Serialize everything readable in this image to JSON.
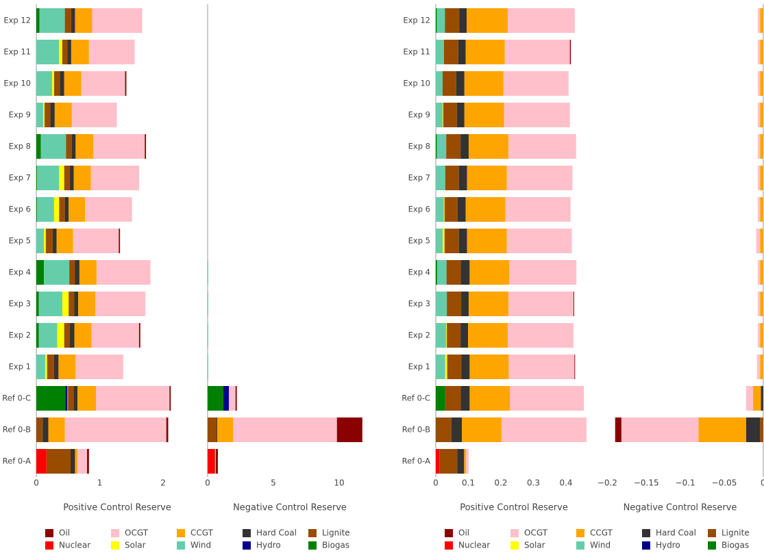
{
  "chart_data": [
    {
      "type": "bar",
      "orientation": "h",
      "categories": [
        "Ref 0-A",
        "Ref 0-B",
        "Ref 0-C",
        "Exp 1",
        "Exp 2",
        "Exp 3",
        "Exp 4",
        "Exp 5",
        "Exp 6",
        "Exp 7",
        "Exp 8",
        "Exp 9",
        "Exp 10",
        "Exp 11",
        "Exp 12"
      ],
      "series": [
        {
          "name": "Oil",
          "color": "#8b0000"
        },
        {
          "name": "OCGT",
          "color": "#ffc0cb"
        },
        {
          "name": "CCGT",
          "color": "#ffa500"
        },
        {
          "name": "Hard Coal",
          "color": "#333333"
        },
        {
          "name": "Lignite",
          "color": "#994c00"
        },
        {
          "name": "Nuclear",
          "color": "#ff0000"
        },
        {
          "name": "Solar",
          "color": "#ffff00"
        },
        {
          "name": "Wind",
          "color": "#66cdaa"
        },
        {
          "name": "Hydro",
          "color": "#00008b"
        },
        {
          "name": "Biogas",
          "color": "#008000"
        }
      ],
      "panels": [
        {
          "xlabel": "Positive Control Reserve",
          "xlim": [
            0,
            2.55
          ],
          "xticks": [
            0,
            1,
            2
          ],
          "values": [
            [
              0.03,
              0.03,
              0.02,
              0,
              0.02,
              0,
              0,
              0.02,
              0,
              0,
              0.02,
              0,
              0.02,
              0,
              0
            ],
            [
              0.15,
              1.6,
              1.16,
              0.75,
              0.75,
              0.79,
              0.85,
              0.72,
              0.74,
              0.76,
              0.81,
              0.71,
              0.69,
              0.72,
              0.79
            ],
            [
              0.04,
              0.26,
              0.29,
              0.27,
              0.27,
              0.27,
              0.27,
              0.26,
              0.26,
              0.27,
              0.28,
              0.27,
              0.27,
              0.28,
              0.27
            ],
            [
              0.07,
              0.09,
              0.06,
              0.07,
              0.07,
              0.06,
              0.07,
              0.06,
              0.06,
              0.06,
              0.06,
              0.07,
              0.07,
              0.06,
              0.06
            ],
            [
              0.38,
              0.1,
              0.09,
              0.11,
              0.09,
              0.09,
              0.09,
              0.11,
              0.09,
              0.09,
              0.09,
              0.09,
              0.09,
              0.08,
              0.1
            ],
            [
              0.16,
              0,
              0,
              0,
              0,
              0,
              0,
              0,
              0,
              0,
              0,
              0,
              0,
              0,
              0
            ],
            [
              0,
              0,
              0,
              0.03,
              0.11,
              0.1,
              0,
              0.03,
              0.08,
              0.08,
              0,
              0.02,
              0.03,
              0.05,
              0
            ],
            [
              0,
              0,
              0.01,
              0.14,
              0.29,
              0.37,
              0.4,
              0.12,
              0.27,
              0.35,
              0.4,
              0.11,
              0.25,
              0.36,
              0.4
            ],
            [
              0,
              0,
              0.03,
              0,
              0,
              0,
              0,
              0,
              0,
              0,
              0,
              0,
              0,
              0,
              0
            ],
            [
              0,
              0,
              0.46,
              0,
              0.04,
              0.04,
              0.12,
              0,
              0.01,
              0.01,
              0.07,
              0,
              0,
              0,
              0.05
            ]
          ]
        },
        {
          "xlabel": "Negative Control Reserve",
          "xlim": [
            0,
            12.5
          ],
          "xticks": [
            0,
            5,
            10
          ],
          "values": [
            [
              0.16,
              1.93,
              0.1,
              0,
              0,
              0,
              0,
              0,
              0,
              0,
              0,
              0,
              0,
              0,
              0
            ],
            [
              0.05,
              7.9,
              0.5,
              0,
              0,
              0,
              0,
              0,
              0,
              0,
              0,
              0,
              0,
              0,
              0
            ],
            [
              0,
              1.2,
              0,
              0,
              0,
              0,
              0,
              0,
              0,
              0,
              0,
              0,
              0,
              0,
              0
            ],
            [
              0,
              0.05,
              0,
              0,
              0,
              0,
              0,
              0,
              0,
              0,
              0,
              0,
              0,
              0,
              0
            ],
            [
              0.05,
              0.68,
              0,
              0,
              0,
              0,
              0,
              0,
              0,
              0,
              0,
              0,
              0,
              0,
              0
            ],
            [
              0.52,
              0,
              0,
              0,
              0,
              0,
              0,
              0,
              0,
              0,
              0,
              0,
              0,
              0,
              0
            ],
            [
              0,
              0,
              0,
              0,
              0,
              0,
              0,
              0,
              0,
              0,
              0,
              0,
              0,
              0,
              0
            ],
            [
              0,
              0,
              0,
              0.05,
              0.05,
              0.05,
              0.05,
              0,
              0,
              0,
              0,
              0,
              0,
              0,
              0
            ],
            [
              0,
              0,
              0.42,
              0,
              0,
              0,
              0,
              0,
              0,
              0,
              0,
              0,
              0,
              0,
              0
            ],
            [
              0,
              0,
              1.2,
              0,
              0,
              0,
              0,
              0,
              0,
              0,
              0,
              0,
              0,
              0,
              0
            ]
          ]
        }
      ]
    },
    {
      "type": "bar",
      "orientation": "h",
      "categories": [
        "Ref 0-A",
        "Ref 0-B",
        "Ref 0-C",
        "Exp 1",
        "Exp 2",
        "Exp 3",
        "Exp 4",
        "Exp 5",
        "Exp 6",
        "Exp 7",
        "Exp 8",
        "Exp 9",
        "Exp 10",
        "Exp 11",
        "Exp 12"
      ],
      "series": [
        {
          "name": "Oil",
          "color": "#8b0000"
        },
        {
          "name": "OCGT",
          "color": "#ffc0cb"
        },
        {
          "name": "CCGT",
          "color": "#ffa500"
        },
        {
          "name": "Hard Coal",
          "color": "#333333"
        },
        {
          "name": "Lignite",
          "color": "#994c00"
        },
        {
          "name": "Nuclear",
          "color": "#ff0000"
        },
        {
          "name": "Solar",
          "color": "#ffff00"
        },
        {
          "name": "Wind",
          "color": "#66cdaa"
        },
        {
          "name": "Hydro",
          "color": "#00008b"
        },
        {
          "name": "Biogas",
          "color": "#008000"
        }
      ],
      "panels": [
        {
          "xlabel": "Positive Control Reserve",
          "xlim": [
            0,
            0.48
          ],
          "xticks": [
            0,
            0.1,
            0.2,
            0.3,
            0.4
          ],
          "values": [
            [
              0,
              0,
              0,
              0.002,
              0,
              0.002,
              0,
              0,
              0,
              0,
              0,
              0,
              0,
              0.003,
              0
            ],
            [
              0.008,
              0.261,
              0.227,
              0.202,
              0.202,
              0.2,
              0.206,
              0.2,
              0.2,
              0.202,
              0.208,
              0.202,
              0.2,
              0.2,
              0.206
            ],
            [
              0.006,
              0.122,
              0.124,
              0.12,
              0.122,
              0.122,
              0.122,
              0.122,
              0.122,
              0.122,
              0.122,
              0.122,
              0.12,
              0.12,
              0.126
            ],
            [
              0.021,
              0.032,
              0.027,
              0.025,
              0.023,
              0.023,
              0.027,
              0.025,
              0.025,
              0.025,
              0.025,
              0.023,
              0.025,
              0.023,
              0.023
            ],
            [
              0.055,
              0.048,
              0.048,
              0.044,
              0.042,
              0.044,
              0.044,
              0.044,
              0.04,
              0.042,
              0.044,
              0.042,
              0.042,
              0.044,
              0.044
            ],
            [
              0.011,
              0,
              0,
              0,
              0,
              0,
              0,
              0,
              0,
              0,
              0,
              0,
              0,
              0,
              0
            ],
            [
              0,
              0,
              0,
              0.006,
              0.002,
              0,
              0,
              0.006,
              0.002,
              0,
              0,
              0.002,
              0,
              0,
              0
            ],
            [
              0,
              0,
              0,
              0.029,
              0.032,
              0.034,
              0.029,
              0.021,
              0.025,
              0.029,
              0.029,
              0.021,
              0.021,
              0.025,
              0.025
            ],
            [
              0,
              0,
              0,
              0,
              0,
              0,
              0,
              0,
              0,
              0,
              0,
              0,
              0,
              0,
              0
            ],
            [
              0,
              0,
              0.029,
              0,
              0,
              0,
              0.004,
              0,
              0,
              0,
              0.003,
              0,
              0,
              0,
              0.003
            ]
          ]
        },
        {
          "xlabel": "Negative Control Reserve",
          "xlim": [
            -0.21,
            0.001
          ],
          "xticks": [
            {
              "value": -0.2,
              "label": "−0.2"
            },
            {
              "value": -0.15,
              "label": "−0.15"
            },
            {
              "value": -0.1,
              "label": "−0.1"
            },
            {
              "value": -0.05,
              "label": "−0.05"
            },
            0
          ],
          "values": [
            [
              0,
              -0.008,
              0,
              0,
              0,
              0,
              0,
              0,
              0,
              0,
              0,
              0,
              0,
              0,
              0
            ],
            [
              0,
              -0.099,
              -0.009,
              -0.004,
              -0.003,
              -0.003,
              -0.003,
              -0.005,
              -0.003,
              -0.003,
              -0.003,
              -0.003,
              -0.003,
              -0.003,
              -0.003
            ],
            [
              0,
              -0.061,
              -0.01,
              -0.004,
              -0.004,
              -0.004,
              -0.004,
              -0.004,
              -0.004,
              -0.004,
              -0.004,
              -0.004,
              -0.004,
              -0.004,
              -0.004
            ],
            [
              0,
              -0.018,
              -0.003,
              0,
              0,
              0,
              0,
              0,
              0,
              0,
              0,
              0,
              0,
              0,
              0
            ],
            [
              0,
              -0.004,
              0,
              0,
              0,
              0,
              0,
              0,
              0,
              0,
              0,
              0,
              0,
              0,
              0
            ],
            [
              0,
              0,
              0,
              0,
              0,
              0,
              0,
              0,
              0,
              0,
              0,
              0,
              0,
              0,
              0
            ],
            [
              0,
              0,
              0,
              0,
              0,
              0,
              0,
              0,
              0,
              0,
              0,
              0,
              0,
              0,
              0
            ],
            [
              0,
              0,
              0,
              0,
              0,
              0,
              0,
              0,
              0,
              0,
              0,
              0,
              0,
              0,
              0
            ],
            [
              0,
              0,
              0,
              0,
              0,
              0,
              0,
              0,
              0,
              0,
              0,
              0,
              0,
              0,
              0
            ],
            [
              0,
              0,
              0,
              0,
              0,
              0,
              0,
              0,
              0,
              0,
              0,
              0,
              0,
              0,
              0
            ]
          ]
        }
      ]
    }
  ]
}
